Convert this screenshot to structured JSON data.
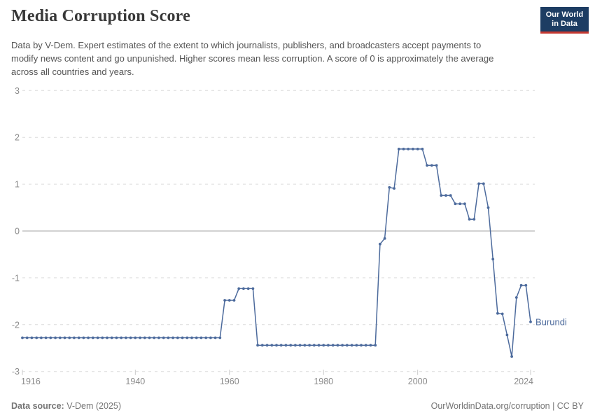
{
  "header": {
    "title": "Media Corruption Score",
    "subtitle": "Data by V-Dem. Expert estimates of the extent to which journalists, publishers, and broadcasters accept payments to modify news content and go unpunished. Higher scores mean less corruption. A score of 0 is approximately the average across all countries and years.",
    "logo": {
      "line1": "Our World",
      "line2": "in Data",
      "bg_color": "#1d3d63",
      "stripe_color": "#c63931"
    }
  },
  "chart_data": {
    "type": "line",
    "title": "Media Corruption Score",
    "xlabel": "",
    "ylabel": "",
    "x_range": [
      1916,
      2024
    ],
    "ylim": [
      -3,
      3
    ],
    "y_ticks": [
      3,
      2,
      1,
      0,
      -1,
      -2,
      -3
    ],
    "x_ticks": [
      1916,
      1940,
      1960,
      1980,
      2000,
      2024
    ],
    "grid": "horizontal dashed gridlines, solid zero line",
    "legend": "entity label at line end",
    "colors": {
      "gridline": "#dcdcdc",
      "zero_line": "#a3a3a3",
      "axis_text": "#8a8a8a",
      "tick_mark": "#c9c9c9"
    },
    "series": [
      {
        "name": "Burundi",
        "color": "#4c6a9c",
        "start_year": 1916,
        "values": [
          -2.28,
          -2.28,
          -2.28,
          -2.28,
          -2.28,
          -2.28,
          -2.28,
          -2.28,
          -2.28,
          -2.28,
          -2.28,
          -2.28,
          -2.28,
          -2.28,
          -2.28,
          -2.28,
          -2.28,
          -2.28,
          -2.28,
          -2.28,
          -2.28,
          -2.28,
          -2.28,
          -2.28,
          -2.28,
          -2.28,
          -2.28,
          -2.28,
          -2.28,
          -2.28,
          -2.28,
          -2.28,
          -2.28,
          -2.28,
          -2.28,
          -2.28,
          -2.28,
          -2.28,
          -2.28,
          -2.28,
          -2.28,
          -2.28,
          -2.28,
          -1.48,
          -1.48,
          -1.48,
          -1.23,
          -1.23,
          -1.23,
          -1.23,
          -2.44,
          -2.44,
          -2.44,
          -2.44,
          -2.44,
          -2.44,
          -2.44,
          -2.44,
          -2.44,
          -2.44,
          -2.44,
          -2.44,
          -2.44,
          -2.44,
          -2.44,
          -2.44,
          -2.44,
          -2.44,
          -2.44,
          -2.44,
          -2.44,
          -2.44,
          -2.44,
          -2.44,
          -2.44,
          -2.44,
          -0.28,
          -0.16,
          0.93,
          0.91,
          1.75,
          1.75,
          1.75,
          1.75,
          1.75,
          1.75,
          1.4,
          1.4,
          1.4,
          0.76,
          0.76,
          0.76,
          0.58,
          0.58,
          0.58,
          0.25,
          0.25,
          1.01,
          1.01,
          0.5,
          -0.6,
          -1.76,
          -1.77,
          -2.22,
          -2.68,
          -1.42,
          -1.16,
          -1.16,
          -1.94
        ]
      }
    ]
  },
  "footer": {
    "source_label": "Data source:",
    "source_value": "V-Dem (2025)",
    "link": "OurWorldinData.org/corruption | CC BY"
  }
}
